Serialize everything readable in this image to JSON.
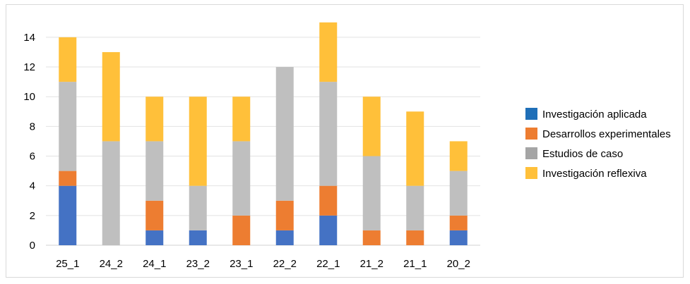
{
  "chart_data": {
    "type": "bar",
    "stacked": true,
    "categories": [
      "25_1",
      "24_2",
      "24_1",
      "23_2",
      "23_1",
      "22_2",
      "22_1",
      "21_2",
      "21_1",
      "20_2"
    ],
    "series": [
      {
        "name": "Investigación aplicada",
        "color": "#4472c4",
        "values": [
          4,
          0,
          1,
          1,
          0,
          1,
          2,
          0,
          0,
          1
        ]
      },
      {
        "name": "Desarrollos experimentales",
        "color": "#ed7d31",
        "values": [
          1,
          0,
          2,
          0,
          2,
          2,
          2,
          1,
          1,
          1
        ]
      },
      {
        "name": "Estudios de caso",
        "color": "#bfbfbf",
        "values": [
          6,
          7,
          4,
          3,
          5,
          9,
          7,
          5,
          3,
          3
        ]
      },
      {
        "name": "Investigación reflexiva",
        "color": "#ffc03a",
        "values": [
          3,
          6,
          3,
          6,
          3,
          0,
          4,
          4,
          5,
          2
        ]
      }
    ],
    "legend_swatch_colors": [
      "#1f6fb8",
      "#ed7d31",
      "#a5a5a5",
      "#ffc03a"
    ],
    "yticks": [
      0,
      2,
      4,
      6,
      8,
      10,
      12,
      14
    ],
    "ylim": [
      0,
      14.8
    ],
    "grid": true,
    "legend": "right"
  }
}
